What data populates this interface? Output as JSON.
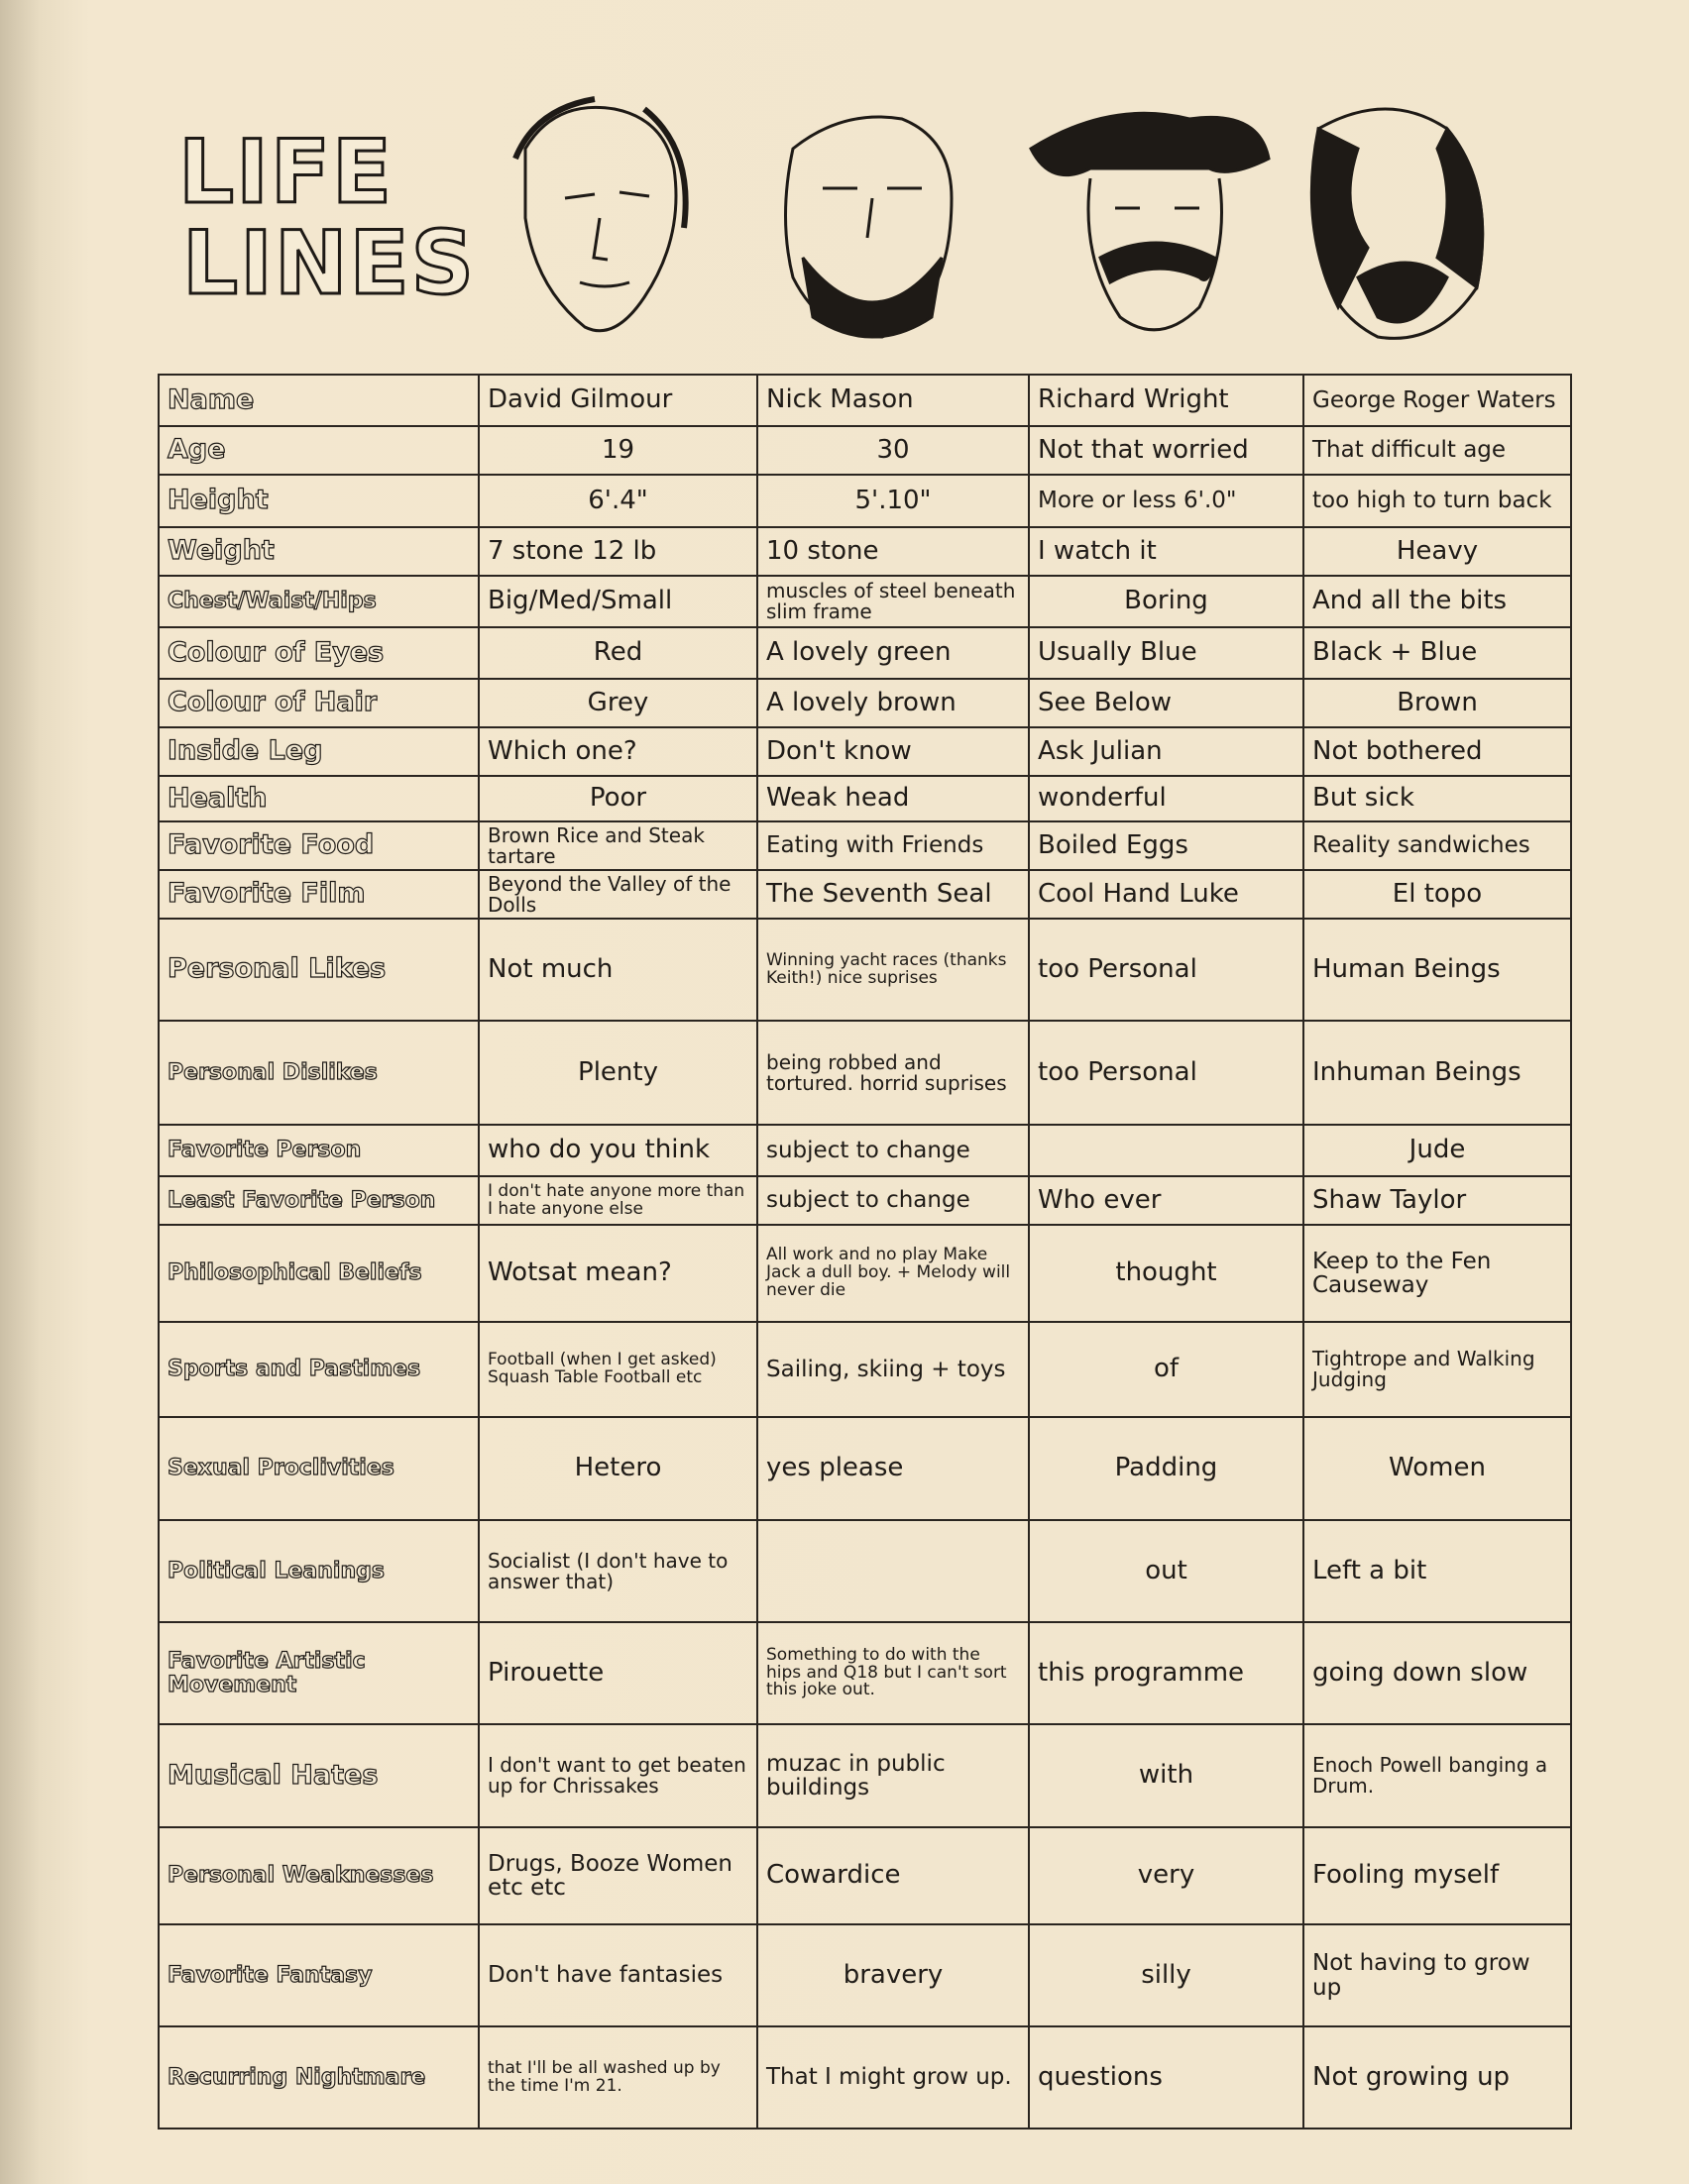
{
  "header": {
    "title": [
      "LIFE",
      "LINES"
    ]
  },
  "table": {
    "rows": [
      {
        "label": "Name",
        "answers": [
          "David Gilmour",
          "Nick Mason",
          "Richard Wright",
          "George Roger Waters"
        ]
      },
      {
        "label": "Age",
        "answers": [
          "19",
          "30",
          "Not that worried",
          "That difficult age"
        ]
      },
      {
        "label": "Height",
        "answers": [
          "6'.4\"",
          "5'.10\"",
          "More or less 6'.0\"",
          "too high to turn back"
        ]
      },
      {
        "label": "Weight",
        "answers": [
          "7 stone 12 lb",
          "10 stone",
          "I watch it",
          "Heavy"
        ]
      },
      {
        "label": "Chest/Waist/Hips",
        "answers": [
          "Big/Med/Small",
          "muscles of steel beneath slim frame",
          "Boring",
          "And all the bits"
        ]
      },
      {
        "label": "Colour of Eyes",
        "answers": [
          "Red",
          "A lovely green",
          "Usually Blue",
          "Black + Blue"
        ]
      },
      {
        "label": "Colour of Hair",
        "answers": [
          "Grey",
          "A lovely brown",
          "See Below",
          "Brown"
        ]
      },
      {
        "label": "Inside Leg",
        "answers": [
          "Which one?",
          "Don't know",
          "Ask Julian",
          "Not bothered"
        ]
      },
      {
        "label": "Health",
        "answers": [
          "Poor",
          "Weak head",
          "wonderful",
          "But sick"
        ]
      },
      {
        "label": "Favorite Food",
        "answers": [
          "Brown Rice and Steak tartare",
          "Eating with Friends",
          "Boiled Eggs",
          "Reality sandwiches"
        ]
      },
      {
        "label": "Favorite Film",
        "answers": [
          "Beyond the Valley of the Dolls",
          "The Seventh Seal",
          "Cool Hand Luke",
          "El topo"
        ]
      },
      {
        "label": "Personal Likes",
        "answers": [
          "Not much",
          "Winning yacht races (thanks Keith!) nice suprises",
          "too Personal",
          "Human Beings"
        ]
      },
      {
        "label": "Personal Dislikes",
        "answers": [
          "Plenty",
          "being robbed and tortured. horrid suprises",
          "too Personal",
          "Inhuman Beings"
        ]
      },
      {
        "label": "Favorite Person",
        "answers": [
          "who do you think",
          "subject to change",
          null,
          "Jude"
        ]
      },
      {
        "label": "Least Favorite Person",
        "answers": [
          "I don't hate anyone more than I hate anyone else",
          "subject to change",
          "Who ever",
          "Shaw Taylor"
        ]
      },
      {
        "label": "Philosophical Beliefs",
        "answers": [
          "Wotsat mean?",
          "All work and no play Make Jack a dull boy. + Melody will never die",
          "thought",
          "Keep to the Fen Causeway"
        ]
      },
      {
        "label": "Sports and Pastimes",
        "answers": [
          "Football (when I get asked) Squash Table Football etc",
          "Sailing, skiing + toys",
          "of",
          "Tightrope and Walking Judging"
        ]
      },
      {
        "label": "Sexual Proclivities",
        "answers": [
          "Hetero",
          "yes please",
          "Padding",
          "Women"
        ]
      },
      {
        "label": "Political Leanings",
        "answers": [
          "Socialist (I don't have to answer that)",
          null,
          "out",
          "Left a bit"
        ]
      },
      {
        "label": "Favorite Artistic Movement",
        "answers": [
          "Pirouette",
          "Something to do with the hips and Q18 but I can't sort this joke out.",
          "this programme",
          "going down slow"
        ]
      },
      {
        "label": "Musical Hates",
        "answers": [
          "I don't want to get beaten up for Chrissakes",
          "muzac in public buildings",
          "with",
          "Enoch Powell banging a Drum."
        ]
      },
      {
        "label": "Personal Weaknesses",
        "answers": [
          "Drugs, Booze Women etc etc",
          "Cowardice",
          "very",
          "Fooling myself"
        ]
      },
      {
        "label": "Favorite Fantasy",
        "answers": [
          "Don't have fantasies",
          "bravery",
          "silly",
          "Not having to grow up"
        ]
      },
      {
        "label": "Recurring Nightmare",
        "answers": [
          "that I'll be all washed up by the time I'm 21.",
          "That I might grow up.",
          "questions",
          "Not growing up"
        ]
      }
    ]
  }
}
